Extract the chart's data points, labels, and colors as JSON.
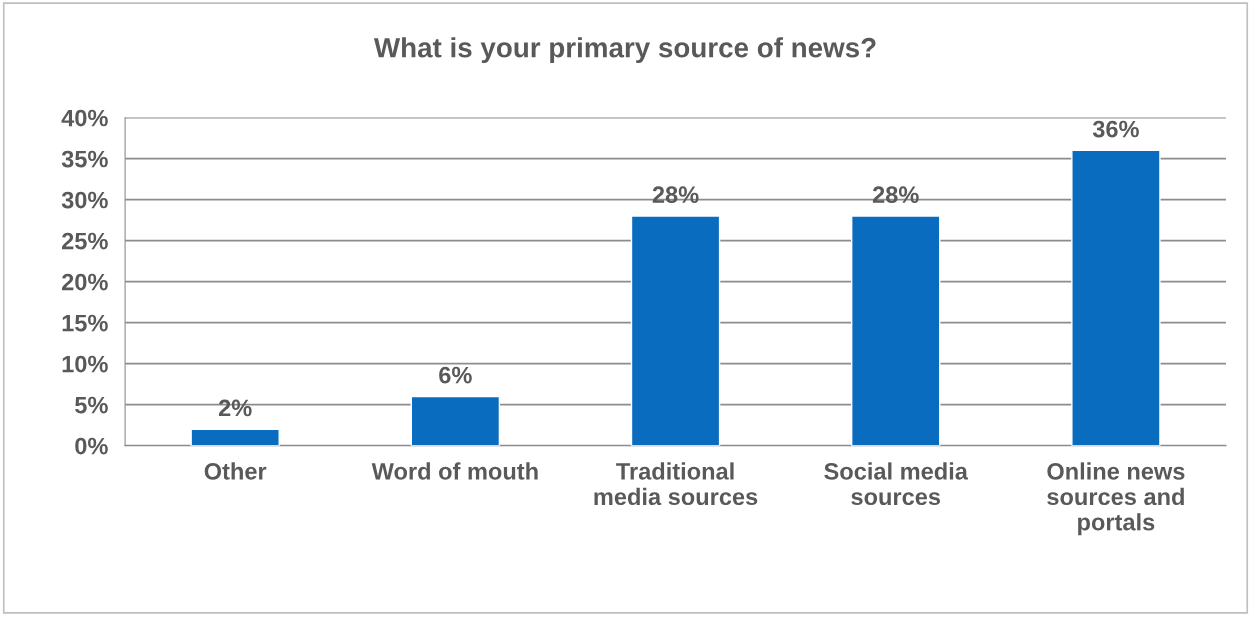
{
  "chart_data": {
    "type": "bar",
    "title": "What is your primary source of news?",
    "categories": [
      "Other",
      "Word of mouth",
      "Traditional\nmedia sources",
      "Social media\nsources",
      "Online news\nsources and\nportals"
    ],
    "values": [
      2,
      6,
      28,
      28,
      36
    ],
    "color": "#0a6cbf",
    "ylim": [
      0,
      40
    ],
    "yticks": [
      {
        "value": 0,
        "label": "0%"
      },
      {
        "value": 5,
        "label": "5%"
      },
      {
        "value": 10,
        "label": "10%"
      },
      {
        "value": 15,
        "label": "15%"
      },
      {
        "value": 20,
        "label": "20%"
      },
      {
        "value": 25,
        "label": "25%"
      },
      {
        "value": 30,
        "label": "30%"
      },
      {
        "value": 35,
        "label": "35%"
      },
      {
        "value": 40,
        "label": "40%"
      }
    ],
    "value_labels": [
      "2%",
      "6%",
      "28%",
      "28%",
      "36%"
    ],
    "grid": "y"
  }
}
